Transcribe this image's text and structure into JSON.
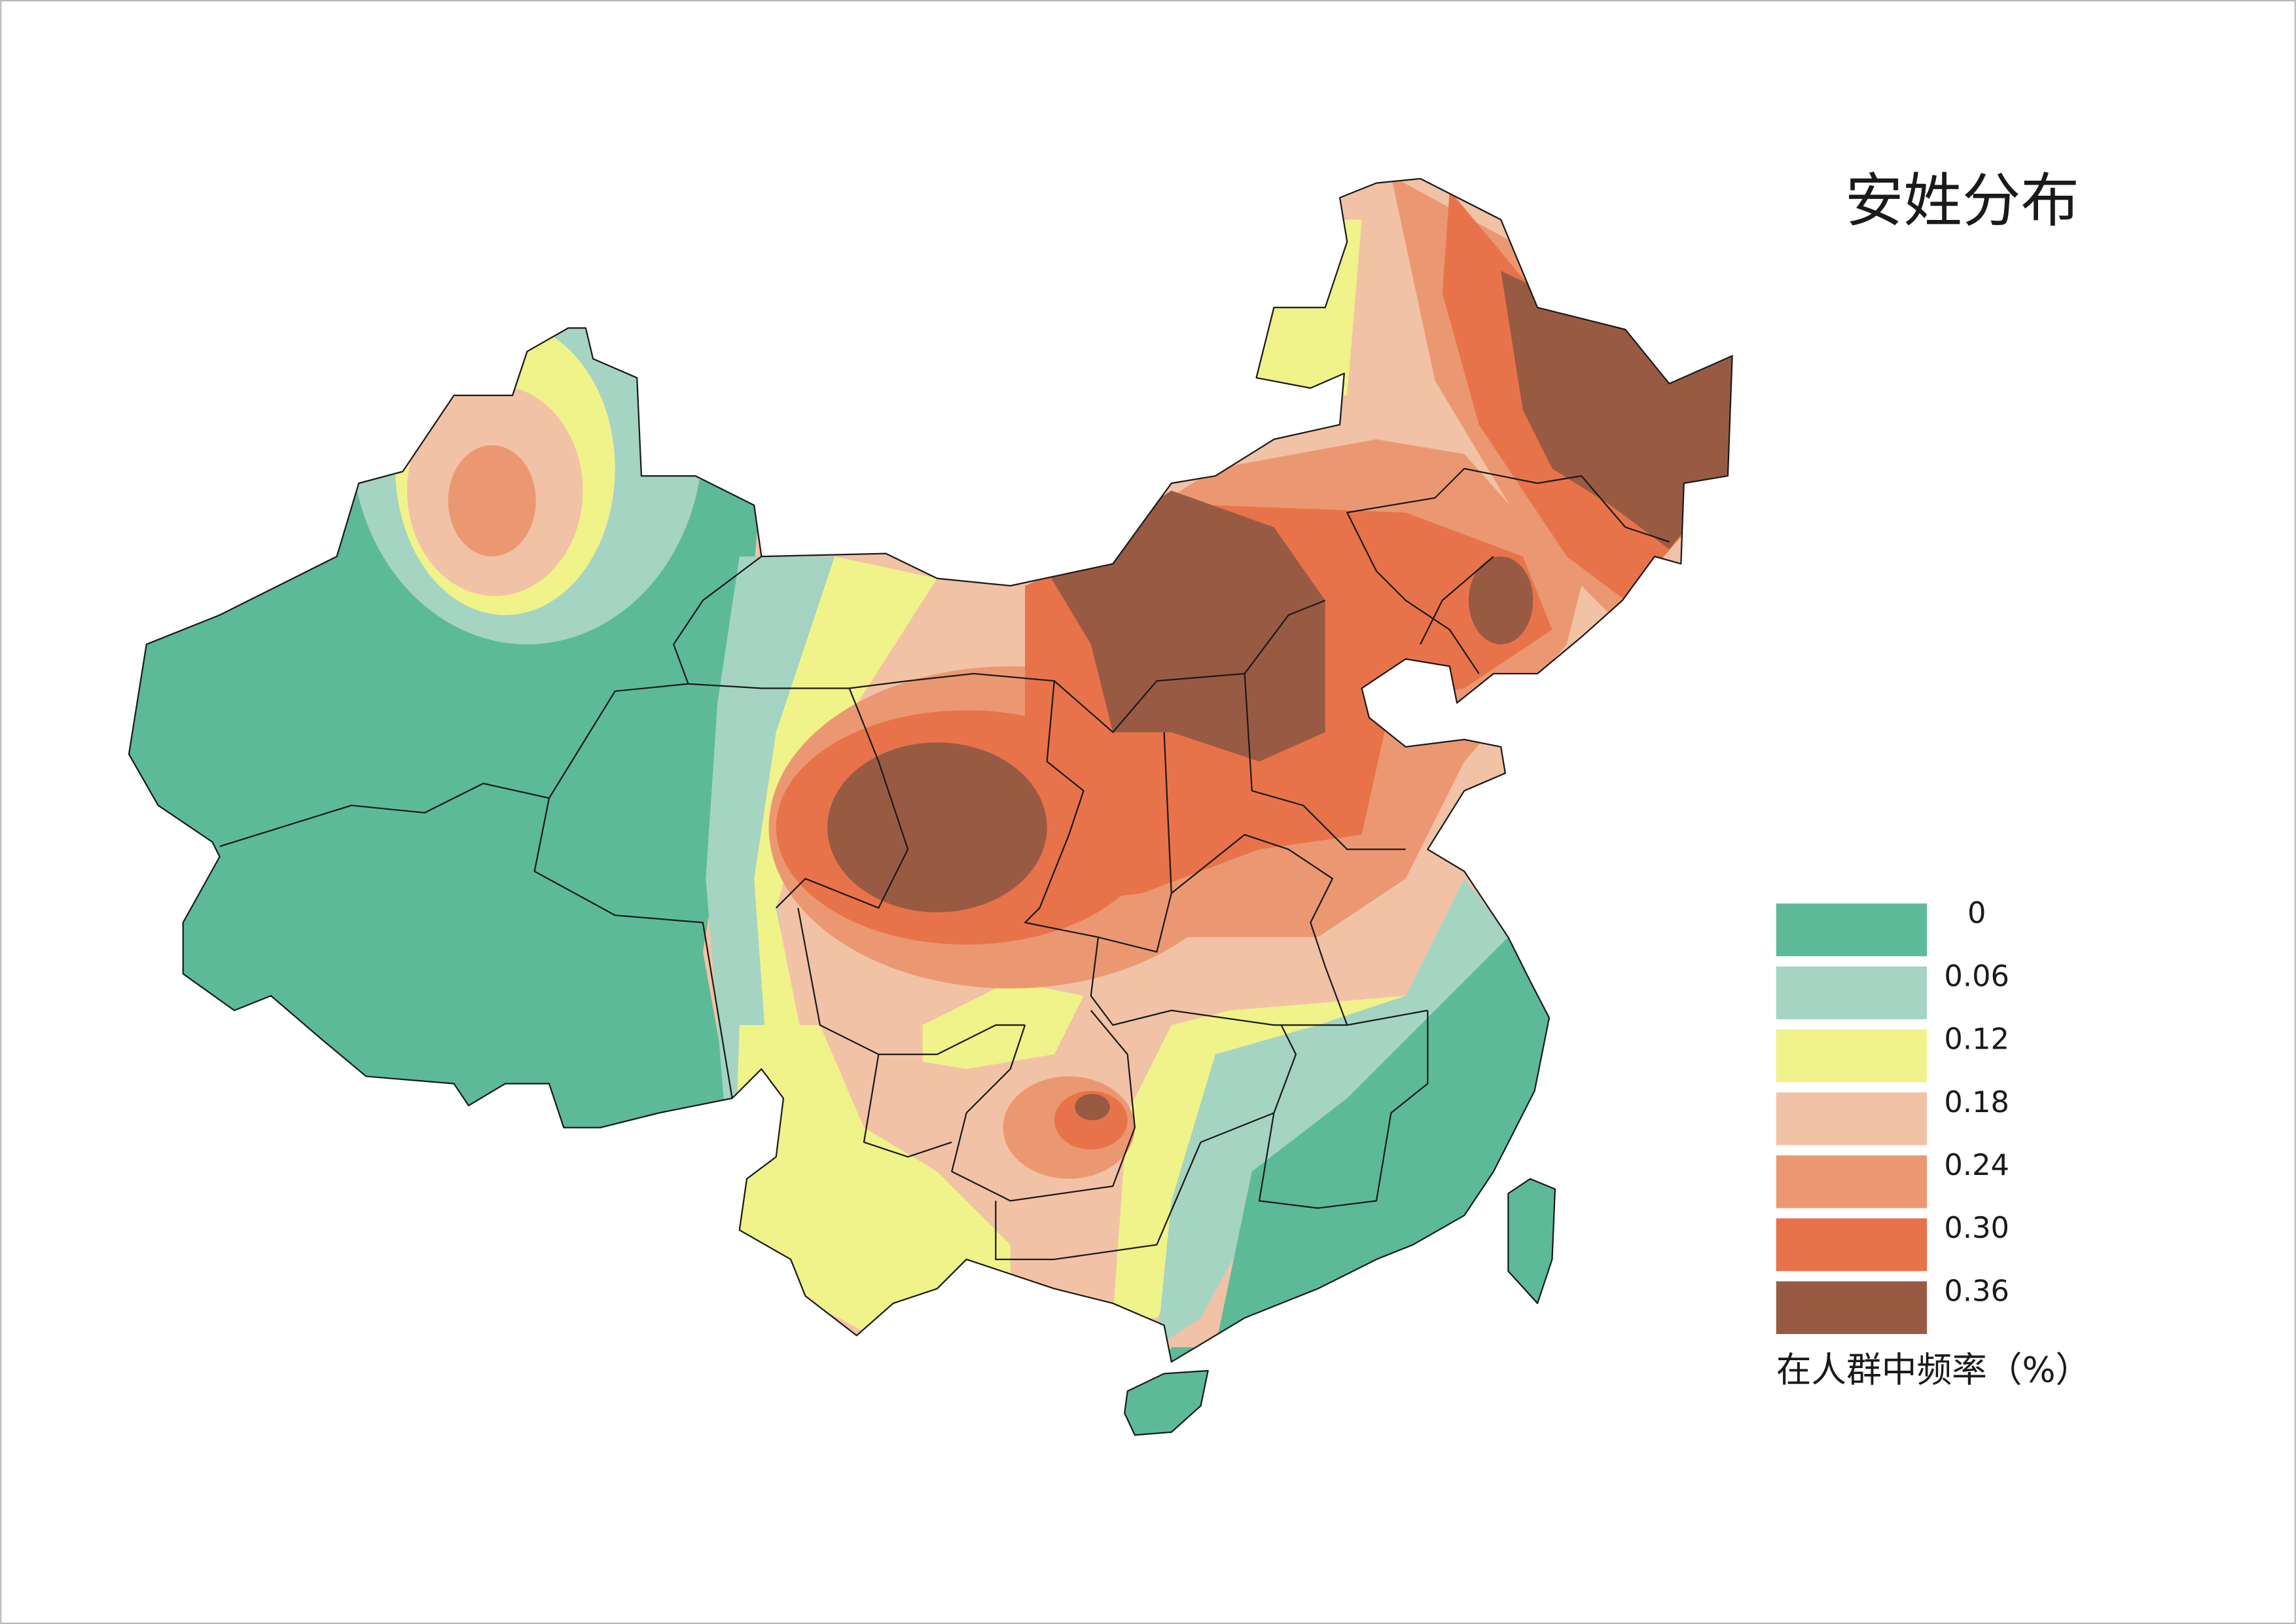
{
  "title": "安姓分布",
  "legend": {
    "items": [
      {
        "label": "0",
        "color": "#5dba99"
      },
      {
        "label": "0.06",
        "color": "#a5d4c3"
      },
      {
        "label": "0.12",
        "color": "#f0f28a"
      },
      {
        "label": "0.18",
        "color": "#f2c2a6"
      },
      {
        "label": "0.24",
        "color": "#eb9872"
      },
      {
        "label": "0.30",
        "color": "#e8734a"
      },
      {
        "label": "0.36",
        "color": "#995a44"
      }
    ],
    "caption": "在人群中频率（%）"
  }
}
